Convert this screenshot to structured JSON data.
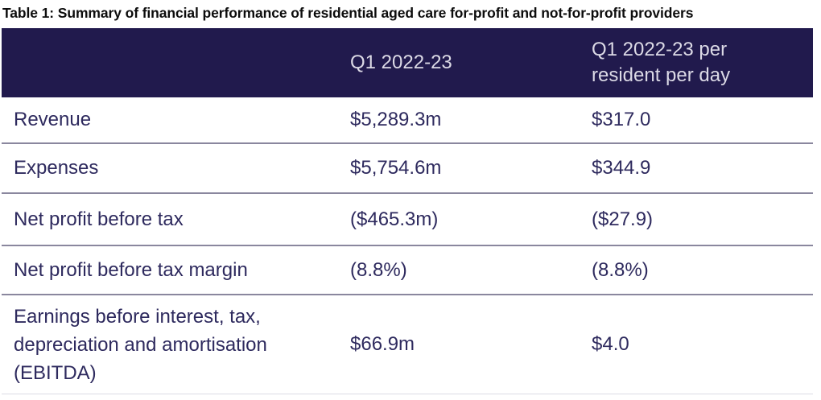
{
  "title": "Table 1: Summary of financial performance of residential aged care for-profit and not-for-profit providers",
  "table": {
    "columns": [
      "",
      "Q1 2022-23",
      "Q1 2022-23 per resident per day"
    ],
    "rows": [
      {
        "label": "Revenue",
        "q1": "$5,289.3m",
        "per_resident_per_day": "$317.0"
      },
      {
        "label": "Expenses",
        "q1": "$5,754.6m",
        "per_resident_per_day": "$344.9"
      },
      {
        "label": "Net profit before tax",
        "q1": "($465.3m)",
        "per_resident_per_day": "($27.9)"
      },
      {
        "label": "Net profit before tax margin",
        "q1": "(8.8%)",
        "per_resident_per_day": "(8.8%)"
      },
      {
        "label": "Earnings before interest, tax, depreciation and amortisation (EBITDA)",
        "q1": "$66.9m",
        "per_resident_per_day": "$4.0"
      }
    ]
  },
  "colors": {
    "header_bg": "#211a4d",
    "header_text": "#dcdae6",
    "body_text": "#2e2a5e",
    "divider": "#8a879e",
    "title_text": "#0d0d0d"
  }
}
